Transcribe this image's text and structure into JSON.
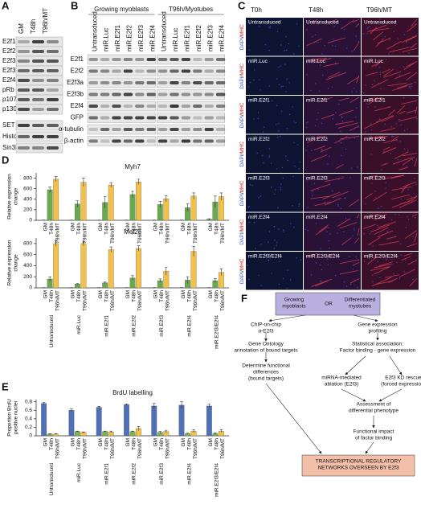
{
  "panel_labels": [
    "A",
    "B",
    "C",
    "D",
    "E",
    "F"
  ],
  "panel_a": {
    "columns": [
      "GM",
      "T48h",
      "T96h/MT"
    ],
    "rows": [
      "E2f1",
      "E2f2",
      "E2f3a",
      "E2f3b",
      "E2f4",
      "pRb",
      "p107",
      "p130",
      "SET",
      "Histone1",
      "Sin3B"
    ]
  },
  "panel_b": {
    "groups": [
      "Growing myoblasts",
      "T96h/Myotubes"
    ],
    "lanes": [
      "Untransduced",
      "miR.Luc",
      "miR.E2f1",
      "miR.E2f2",
      "miR.E2f3",
      "miR.E2f4"
    ],
    "rows": [
      "E2f1",
      "E2f2",
      "E2f3a",
      "E2f3b",
      "E2f4",
      "GFP",
      "α-tubulin",
      "β-actin"
    ]
  },
  "panel_c": {
    "columns": [
      "T0h",
      "T48h",
      "T96h/MT"
    ],
    "rows": [
      "Untransduced",
      "miR.Luc",
      "miR.E2f1",
      "miR.E2f2",
      "miR.E2f3",
      "miR.E2f4",
      "miR.E2f3/E2f4"
    ],
    "stain": {
      "dapi": "DAPI",
      "sep": "/",
      "mhc": "MHC"
    }
  },
  "chart_data": [
    {
      "type": "bar",
      "title": "Myh7",
      "ylabel": [
        "Relative expression",
        "change"
      ],
      "ylim": [
        0,
        900
      ],
      "yticks": [
        0,
        200,
        400,
        600,
        800
      ],
      "series": [
        {
          "name": "GM",
          "color": "#6aaa4e",
          "values": [
            0,
            0,
            0,
            0,
            0,
            0,
            20
          ],
          "errors": [
            5,
            5,
            5,
            5,
            5,
            5,
            10
          ]
        },
        {
          "name": "T48h",
          "color": "#6aaa4e",
          "values": [
            580,
            310,
            340,
            490,
            300,
            240,
            350
          ],
          "errors": [
            50,
            60,
            110,
            60,
            60,
            70,
            110
          ]
        },
        {
          "name": "T96h/MT",
          "color": "#f3c04a",
          "values": [
            780,
            720,
            670,
            730,
            410,
            460,
            450
          ],
          "errors": [
            50,
            80,
            40,
            50,
            60,
            60,
            70
          ]
        }
      ]
    },
    {
      "type": "bar",
      "title": "Mef2c",
      "ylabel": [
        "Relative expression",
        "change"
      ],
      "categories": [
        "Untransduced",
        "miR.Luc",
        "miR.E2f1",
        "miR.E2f2",
        "miR.E2f3",
        "miR.E2f4",
        "miR.E2f3/E2f4"
      ],
      "ylim": [
        0,
        900
      ],
      "yticks": [
        0,
        200,
        400,
        600,
        800
      ],
      "series": [
        {
          "name": "GM",
          "color": "#6aaa4e",
          "values": [
            0,
            0,
            0,
            0,
            0,
            0,
            0
          ],
          "errors": [
            5,
            5,
            5,
            5,
            5,
            5,
            5
          ]
        },
        {
          "name": "T48h",
          "color": "#6aaa4e",
          "values": [
            160,
            70,
            90,
            180,
            130,
            140,
            130
          ],
          "errors": [
            40,
            10,
            15,
            40,
            30,
            60,
            40
          ]
        },
        {
          "name": "T96h/MT",
          "color": "#f3c04a",
          "values": [
            800,
            800,
            690,
            710,
            300,
            660,
            280
          ],
          "errors": [
            50,
            40,
            50,
            50,
            70,
            90,
            60
          ]
        }
      ]
    },
    {
      "type": "bar",
      "title": "BrdU labelling",
      "ylabel": [
        "Proportion BrdU",
        "positive nuclei"
      ],
      "categories": [
        "Untransduced",
        "miR.Luc",
        "miR.E2f1",
        "miR.E2f2",
        "miR.E2f3",
        "miR.E2f4",
        "miR.E2f3/E2f4"
      ],
      "ylim": [
        0,
        0.85
      ],
      "yticks": [
        0,
        0.2,
        0.4,
        0.6,
        0.8
      ],
      "series": [
        {
          "name": "GM",
          "color": "#4f6fb8",
          "values": [
            0.76,
            0.6,
            0.67,
            0.73,
            0.7,
            0.72,
            0.7
          ],
          "errors": [
            0.02,
            0.03,
            0.02,
            0.02,
            0.06,
            0.08,
            0.04
          ]
        },
        {
          "name": "T48h",
          "color": "#7ab648",
          "values": [
            0.04,
            0.1,
            0.1,
            0.1,
            0.08,
            0.05,
            0.05
          ],
          "errors": [
            0.01,
            0.01,
            0.01,
            0.01,
            0.02,
            0.01,
            0.02
          ]
        },
        {
          "name": "T96h/MT",
          "color": "#f3c04a",
          "values": [
            0.04,
            0.08,
            0.09,
            0.17,
            0.1,
            0.11,
            0.11
          ],
          "errors": [
            0.01,
            0.01,
            0.02,
            0.05,
            0.03,
            0.03,
            0.03
          ]
        }
      ]
    }
  ],
  "panel_f": {
    "nodes": [
      {
        "lines": [
          "Growing",
          "myoblasts"
        ]
      },
      {
        "lines": [
          "OR"
        ]
      },
      {
        "lines": [
          "Differentiated",
          "myotubes"
        ]
      },
      {
        "lines": [
          "ChIP-on-chip",
          "α-E2f3"
        ]
      },
      {
        "lines": [
          "Gene expression",
          "profiling"
        ]
      },
      {
        "lines": [
          "Gene Ontology",
          "annotation of bound targets"
        ]
      },
      {
        "lines": [
          "Statistical association:",
          "Factor binding - gene expression"
        ]
      },
      {
        "lines": [
          "Determine functional",
          "differences",
          "(bound targets)"
        ]
      },
      {
        "lines": [
          "miRNA-mediated",
          "ablation (E2f3)"
        ]
      },
      {
        "lines": [
          "E2f3 KD rescue",
          "(forced expression)"
        ]
      },
      {
        "lines": [
          "Assessment of",
          "differential phenotype"
        ]
      },
      {
        "lines": [
          "Functional impact",
          "of factor binding"
        ]
      },
      {
        "lines": [
          "TRANSCRIPTIONAL REGULATORY",
          "NETWORKS OVERSEEN BY E2f3"
        ]
      }
    ]
  }
}
